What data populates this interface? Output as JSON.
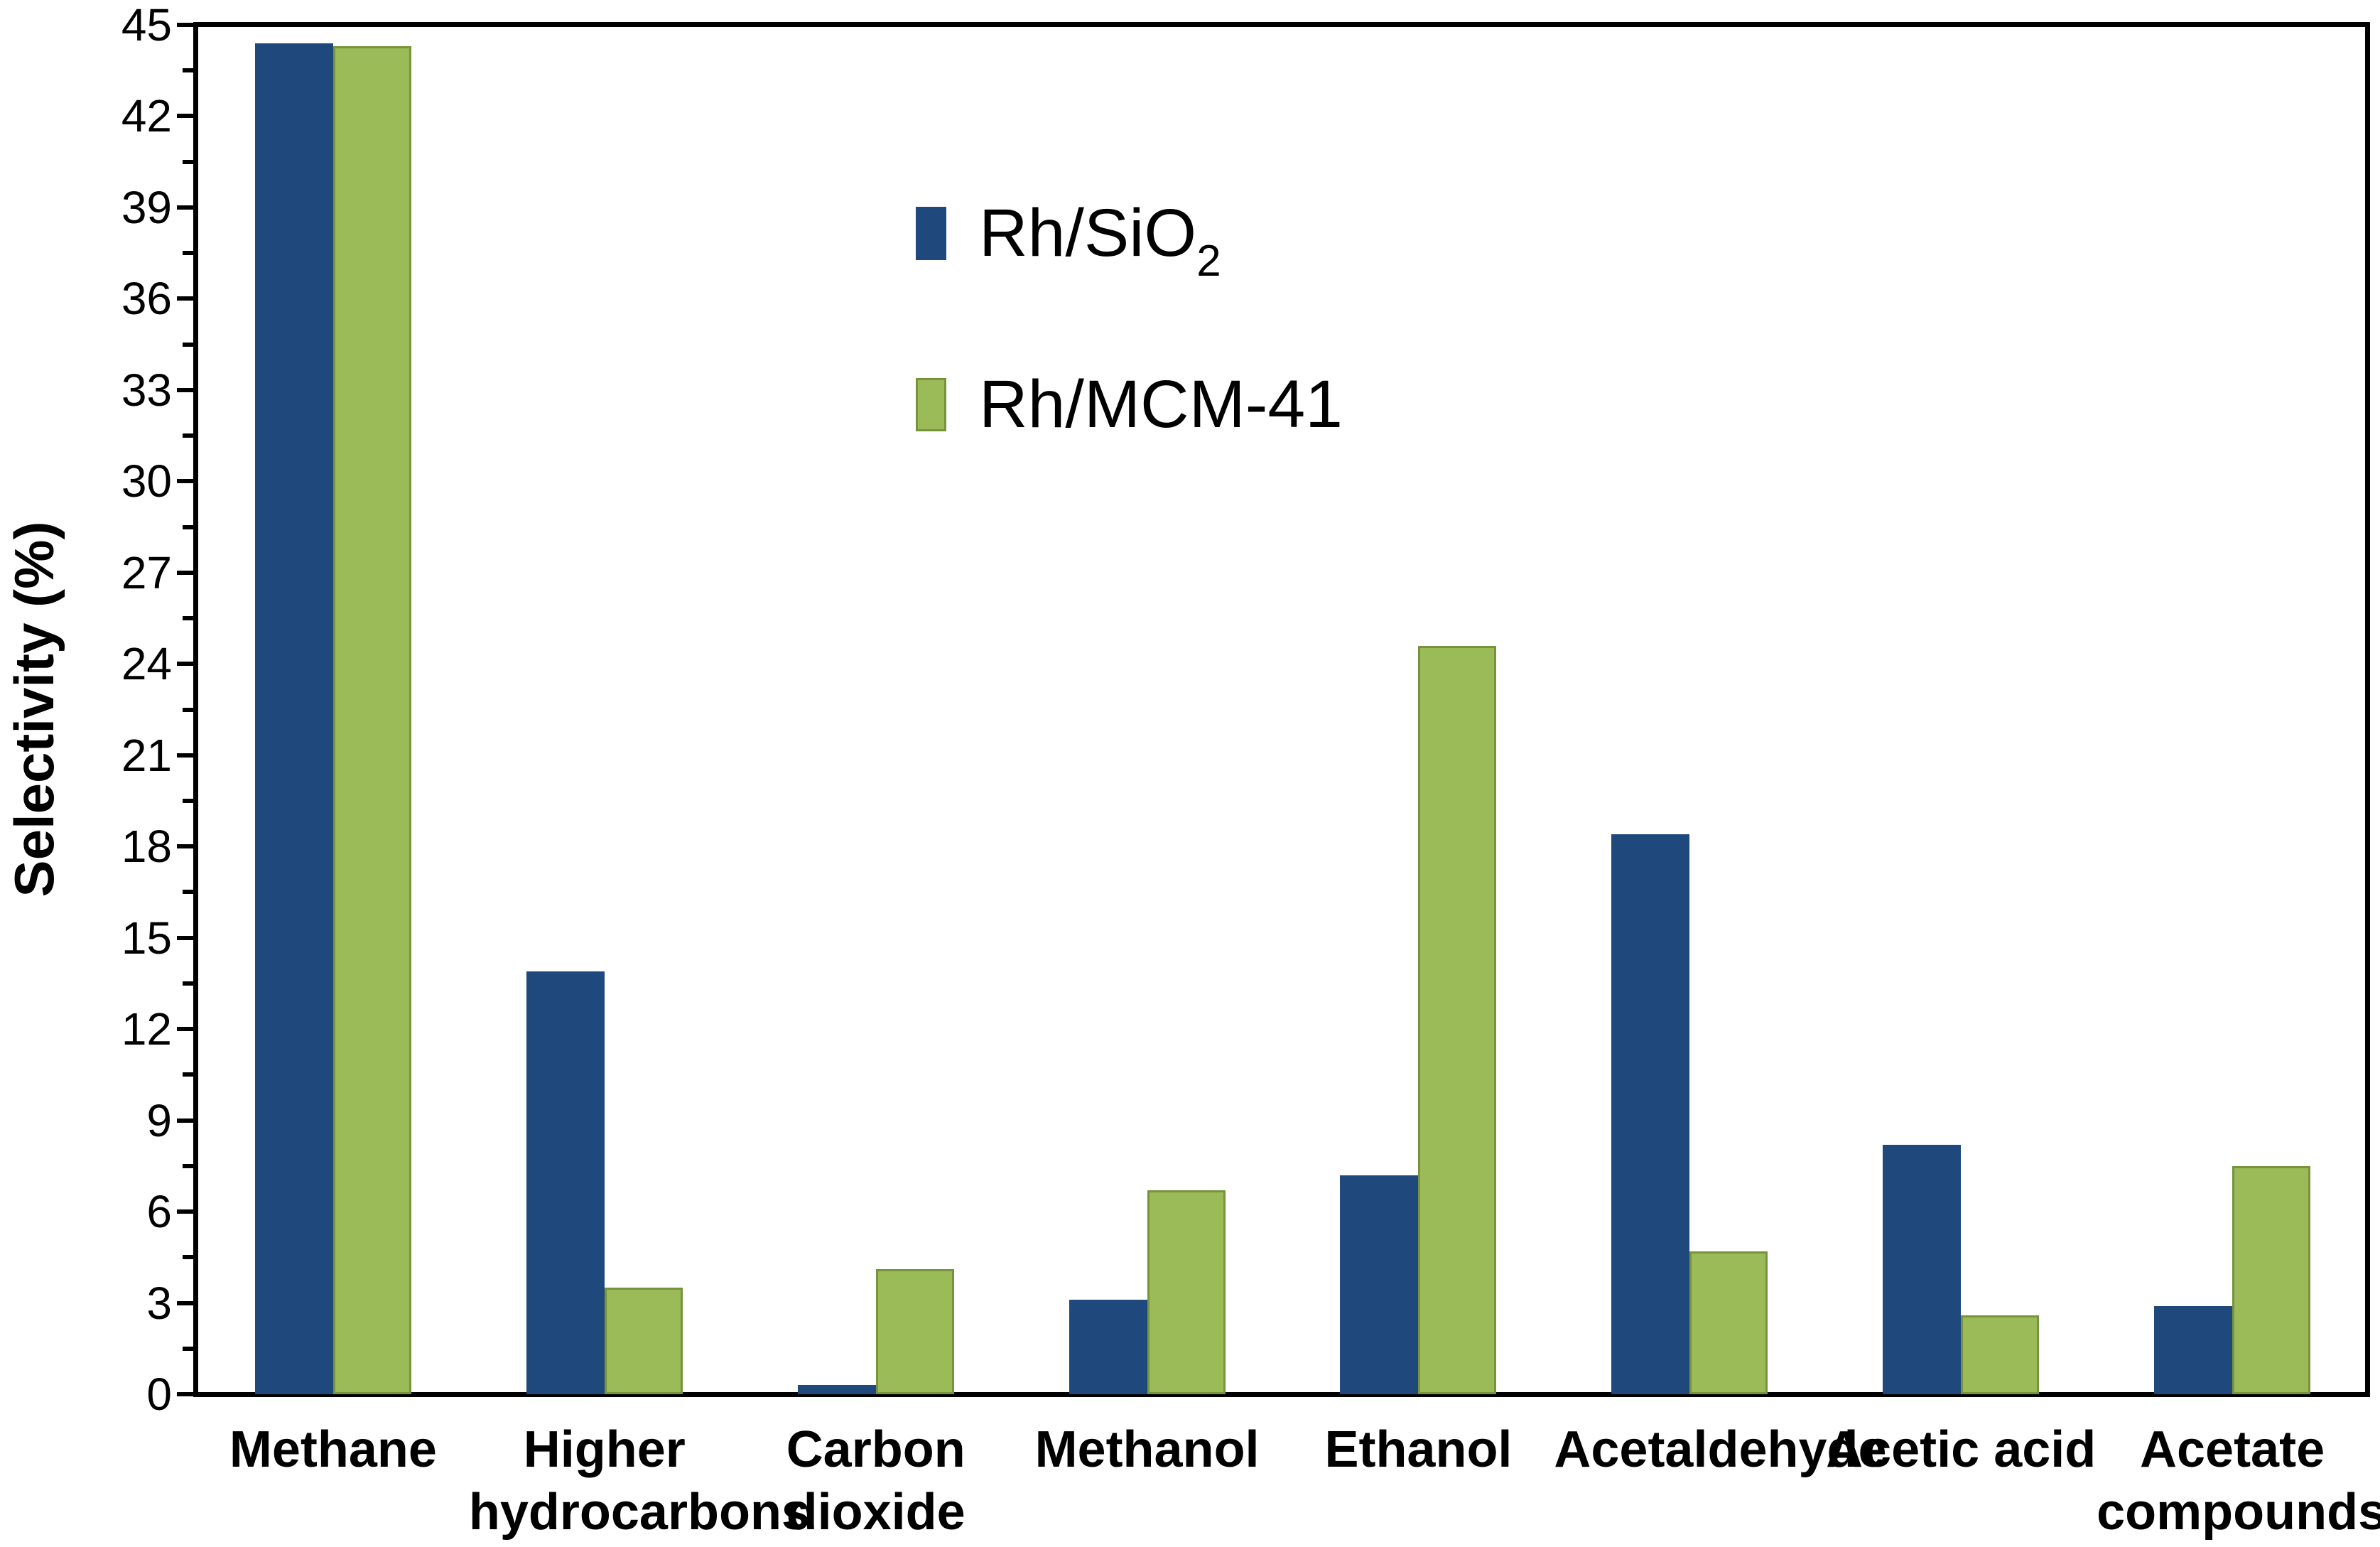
{
  "figure": {
    "background": "#ffffff"
  },
  "y_axis": {
    "title": "Selectivity (%)",
    "tick_labels": [
      "0",
      "3",
      "6",
      "9",
      "12",
      "15",
      "18",
      "21",
      "24",
      "27",
      "30",
      "33",
      "36",
      "39",
      "42",
      "45"
    ]
  },
  "legend": {
    "items": [
      {
        "label_main": "Rh/SiO",
        "label_sub": "2",
        "color": "#1F497D"
      },
      {
        "label_main": "Rh/MCM-41",
        "label_sub": "",
        "color": "#9BBB59"
      }
    ]
  },
  "chart_data": {
    "type": "bar",
    "title": "",
    "xlabel": "",
    "ylabel": "Selectivity (%)",
    "ylim": [
      0,
      45
    ],
    "ytick_step": 3,
    "yminor_tick_step": 1.5,
    "grid": false,
    "legend_position": "upper-left-of-center, stacked vertically",
    "categories": [
      [
        "Methane"
      ],
      [
        "Higher",
        "hydrocarbons"
      ],
      [
        "Carbon",
        "dioxide"
      ],
      [
        "Methanol"
      ],
      [
        "Ethanol"
      ],
      [
        "Acetaldehyde"
      ],
      [
        "Acetic acid"
      ],
      [
        "Acetate",
        "compounds"
      ]
    ],
    "series": [
      {
        "name": "Rh/SiO2",
        "color": "#1F497D",
        "values": [
          44.4,
          13.9,
          0.3,
          3.1,
          7.2,
          18.4,
          8.2,
          2.9
        ]
      },
      {
        "name": "Rh/MCM-41",
        "color": "#9BBB59",
        "border_color": "#77933C",
        "values": [
          44.3,
          3.5,
          4.1,
          6.7,
          24.6,
          4.7,
          2.6,
          7.5
        ]
      }
    ]
  }
}
